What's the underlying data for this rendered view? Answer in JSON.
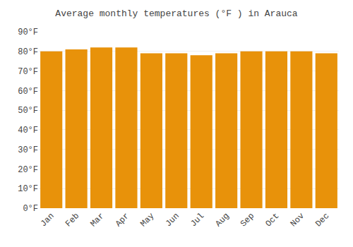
{
  "chart_data": {
    "type": "bar",
    "title": "Average monthly temperatures (°F ) in Arauca",
    "categories": [
      "Jan",
      "Feb",
      "Mar",
      "Apr",
      "May",
      "Jun",
      "Jul",
      "Aug",
      "Sep",
      "Oct",
      "Nov",
      "Dec"
    ],
    "values": [
      80,
      81,
      82,
      82,
      79,
      79,
      78,
      79,
      80,
      80,
      80,
      79
    ],
    "color": "#E8920A",
    "ylim": [
      0,
      90
    ],
    "yticks": [
      {
        "value": 0,
        "label": "0°F"
      },
      {
        "value": 10,
        "label": "10°F"
      },
      {
        "value": 20,
        "label": "20°F"
      },
      {
        "value": 30,
        "label": "30°F"
      },
      {
        "value": 40,
        "label": "40°F"
      },
      {
        "value": 50,
        "label": "50°F"
      },
      {
        "value": 60,
        "label": "60°F"
      },
      {
        "value": 70,
        "label": "70°F"
      },
      {
        "value": 80,
        "label": "80°F"
      },
      {
        "value": 90,
        "label": "90°F"
      }
    ],
    "grid": true
  }
}
